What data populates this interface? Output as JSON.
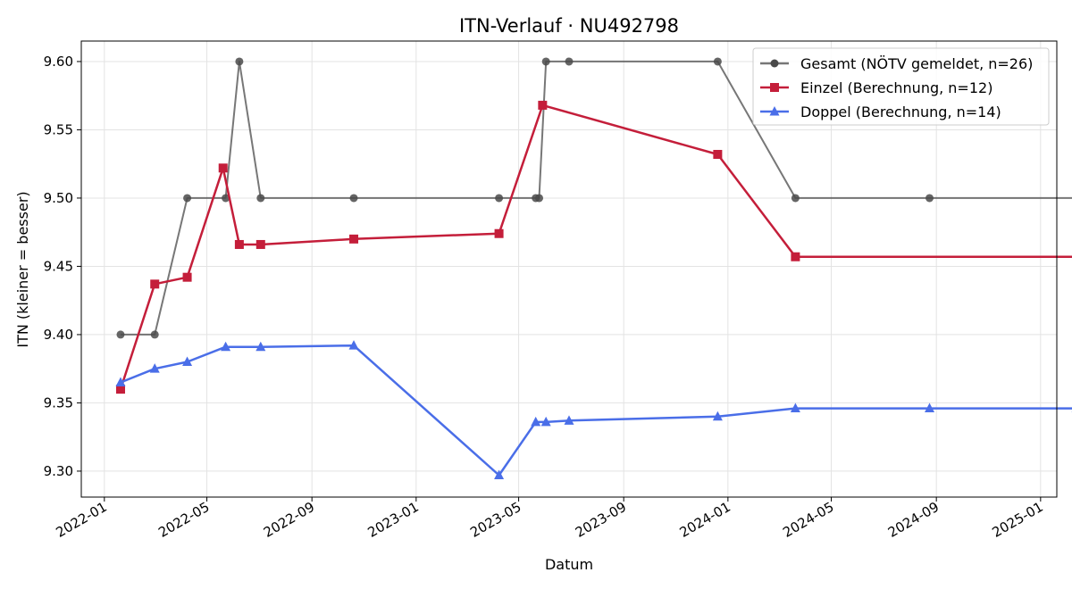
{
  "chart_data": {
    "type": "line",
    "title": "ITN-Verlauf · NU492798",
    "xlabel": "Datum",
    "ylabel": "ITN  (kleiner = besser)",
    "x_range": [
      "2021-12-05",
      "2025-01-20"
    ],
    "ylim": [
      9.281,
      9.615
    ],
    "y_ticks": [
      9.3,
      9.35,
      9.4,
      9.45,
      9.5,
      9.55,
      9.6
    ],
    "x_ticks": [
      "2022-01-01",
      "2022-05-01",
      "2022-09-01",
      "2023-01-01",
      "2023-05-01",
      "2023-09-01",
      "2024-01-01",
      "2024-05-01",
      "2024-09-01",
      "2025-01-01"
    ],
    "x_tick_labels": [
      "2022-01",
      "2022-05",
      "2022-09",
      "2023-01",
      "2023-05",
      "2023-09",
      "2024-01",
      "2024-05",
      "2024-09",
      "2025-01"
    ],
    "grid": true,
    "legend_position": "top-right",
    "series": [
      {
        "name": "Gesamt (NÖTV gemeldet, n=26)",
        "color": "#4a4a4a",
        "marker": "circle",
        "points": [
          [
            "2022-01-20",
            9.4
          ],
          [
            "2022-03-01",
            9.4
          ],
          [
            "2022-04-08",
            9.5
          ],
          [
            "2022-05-23",
            9.5
          ],
          [
            "2022-06-08",
            9.6
          ],
          [
            "2022-07-03",
            9.5
          ],
          [
            "2022-10-20",
            9.5
          ],
          [
            "2023-04-08",
            9.5
          ],
          [
            "2023-05-21",
            9.5
          ],
          [
            "2023-05-25",
            9.5
          ],
          [
            "2023-06-02",
            9.6
          ],
          [
            "2023-06-29",
            9.6
          ],
          [
            "2023-12-20",
            9.6
          ],
          [
            "2024-03-20",
            9.5
          ],
          [
            "2024-08-24",
            9.5
          ],
          [
            "2025-02-12",
            9.5
          ]
        ]
      },
      {
        "name": "Einzel (Berechnung, n=12)",
        "color": "#c41e3a",
        "marker": "square",
        "points": [
          [
            "2022-01-20",
            9.36
          ],
          [
            "2022-03-01",
            9.437
          ],
          [
            "2022-04-08",
            9.442
          ],
          [
            "2022-05-20",
            9.522
          ],
          [
            "2022-06-08",
            9.466
          ],
          [
            "2022-07-03",
            9.466
          ],
          [
            "2022-10-20",
            9.47
          ],
          [
            "2023-04-08",
            9.474
          ],
          [
            "2023-05-29",
            9.568
          ],
          [
            "2023-12-20",
            9.532
          ],
          [
            "2024-03-20",
            9.457
          ],
          [
            "2025-02-12",
            9.457
          ]
        ]
      },
      {
        "name": "Doppel (Berechnung, n=14)",
        "color": "#4a6ee8",
        "marker": "triangle",
        "points": [
          [
            "2022-01-20",
            9.365
          ],
          [
            "2022-03-01",
            9.375
          ],
          [
            "2022-04-08",
            9.38
          ],
          [
            "2022-05-23",
            9.391
          ],
          [
            "2022-07-03",
            9.391
          ],
          [
            "2022-10-20",
            9.392
          ],
          [
            "2023-04-08",
            9.297
          ],
          [
            "2023-05-21",
            9.336
          ],
          [
            "2023-06-02",
            9.336
          ],
          [
            "2023-06-29",
            9.337
          ],
          [
            "2023-12-20",
            9.34
          ],
          [
            "2024-03-20",
            9.346
          ],
          [
            "2024-08-24",
            9.346
          ],
          [
            "2025-02-12",
            9.346
          ]
        ]
      }
    ]
  }
}
